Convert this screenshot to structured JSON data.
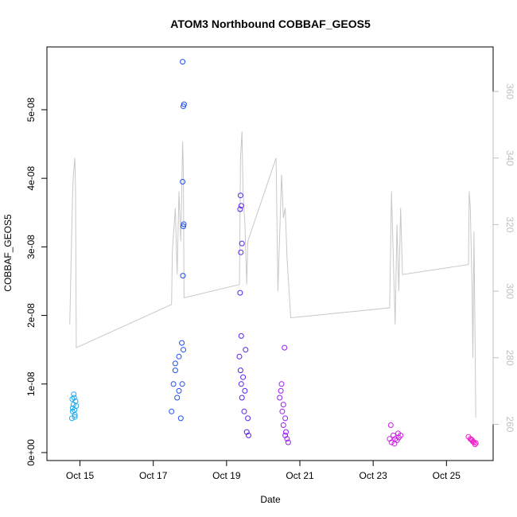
{
  "chart_data": {
    "type": "scatter",
    "title": "ATOM3 Northbound COBBAF_GEOS5",
    "xlabel": "Date",
    "ylabel": "COBBAF_GEOS5",
    "x_ticks": [
      "Oct 15",
      "Oct 17",
      "Oct 19",
      "Oct 21",
      "Oct 23",
      "Oct 25"
    ],
    "y_ticks": [
      "0e+00",
      "1e-08",
      "2e-08",
      "3e-08",
      "4e-08",
      "5e-08"
    ],
    "y2_ticks": [
      "260",
      "280",
      "300",
      "320",
      "340",
      "360"
    ],
    "xlim_days": [
      14.25,
      26.1
    ],
    "ylim": [
      0,
      5.8e-08
    ],
    "y2lim": [
      251.5,
      371
    ],
    "colors": {
      "line": "#c8c8c8",
      "right_axis": "#bfbfbf"
    },
    "series": [
      {
        "name": "",
        "color": "#1eaaf0",
        "x_day": [
          14.78,
          14.8,
          14.82,
          14.84,
          14.86,
          14.88,
          14.8,
          14.83,
          14.86,
          14.9,
          14.79,
          14.85
        ],
        "y": [
          5e-09,
          6e-09,
          7e-09,
          8e-09,
          5.5e-09,
          7.5e-09,
          6.5e-09,
          8.5e-09,
          5.2e-09,
          6.8e-09,
          7.8e-09,
          6.2e-09
        ]
      },
      {
        "name": "",
        "color": "#1f4ff0",
        "x_day": [
          17.5,
          17.55,
          17.6,
          17.65,
          17.7,
          17.75,
          17.78,
          17.8,
          17.82,
          17.84,
          17.8,
          17.82,
          17.83,
          17.81,
          17.82,
          17.79,
          17.6,
          17.7
        ],
        "y": [
          6e-09,
          1e-08,
          1.2e-08,
          8e-09,
          1.4e-08,
          5e-09,
          1.6e-08,
          5.7e-08,
          5.05e-08,
          5.08e-08,
          3.95e-08,
          3.3e-08,
          3.33e-08,
          2.58e-08,
          1.5e-08,
          1e-08,
          1.3e-08,
          9e-09
        ]
      },
      {
        "name": "",
        "color": "#5a1ff0",
        "x_day": [
          19.35,
          19.38,
          19.4,
          19.42,
          19.45,
          19.48,
          19.5,
          19.52,
          19.55,
          19.38,
          19.4,
          19.37,
          19.42,
          19.39,
          19.37,
          19.4,
          19.6,
          19.58
        ],
        "y": [
          1.4e-08,
          1.2e-08,
          1e-08,
          8e-09,
          1.1e-08,
          6e-09,
          9e-09,
          1.5e-08,
          3e-09,
          3.75e-08,
          3.6e-08,
          3.55e-08,
          3.05e-08,
          2.92e-08,
          2.33e-08,
          1.7e-08,
          2.5e-09,
          5e-09
        ]
      },
      {
        "name": "",
        "color": "#9a1ef0",
        "x_day": [
          20.45,
          20.5,
          20.55,
          20.6,
          20.65,
          20.48,
          20.52,
          20.58,
          20.62,
          20.68,
          20.55,
          20.6
        ],
        "y": [
          8e-09,
          1e-08,
          7e-09,
          5e-09,
          2e-09,
          9e-09,
          6e-09,
          1.53e-08,
          3e-09,
          1.5e-09,
          4e-09,
          2.5e-09
        ]
      },
      {
        "name": "",
        "color": "#cd1ee6",
        "x_day": [
          23.45,
          23.5,
          23.55,
          23.6,
          23.65,
          23.7,
          23.75,
          23.48,
          23.58,
          23.68
        ],
        "y": [
          2e-09,
          1.5e-09,
          2.5e-09,
          2e-09,
          1.8e-09,
          2.2e-09,
          2.5e-09,
          4e-09,
          1.3e-09,
          2.8e-09
        ]
      },
      {
        "name": "",
        "color": "#f01ec8",
        "x_day": [
          25.6,
          25.65,
          25.7,
          25.75,
          25.8,
          25.68,
          25.72,
          25.78
        ],
        "y": [
          2.3e-09,
          2e-09,
          1.8e-09,
          1.5e-09,
          1.4e-09,
          1.9e-09,
          1.6e-09,
          1.2e-09
        ]
      }
    ],
    "line_series": {
      "name": "",
      "x_day": [
        14.72,
        14.76,
        14.78,
        14.8,
        14.82,
        14.86,
        14.88,
        14.9,
        17.5,
        17.52,
        17.6,
        17.65,
        17.7,
        17.75,
        17.8,
        17.82,
        17.84,
        19.35,
        19.38,
        19.42,
        19.45,
        19.5,
        19.55,
        19.58,
        20.35,
        20.4,
        20.5,
        20.55,
        20.6,
        20.65,
        20.75,
        23.45,
        23.5,
        23.55,
        23.6,
        23.65,
        23.7,
        23.75,
        23.8,
        25.6,
        25.62,
        25.65,
        25.7,
        25.72,
        25.75,
        25.8
      ],
      "y2": [
        290,
        310,
        320,
        330,
        335,
        340,
        330,
        283,
        296,
        312,
        325,
        305,
        330,
        315,
        345,
        337,
        298,
        302,
        340,
        348,
        330,
        320,
        302,
        315,
        340,
        300,
        335,
        322,
        325,
        310,
        292,
        295,
        330,
        310,
        290,
        320,
        300,
        325,
        305,
        308,
        330,
        325,
        300,
        280,
        318,
        262
      ]
    }
  }
}
